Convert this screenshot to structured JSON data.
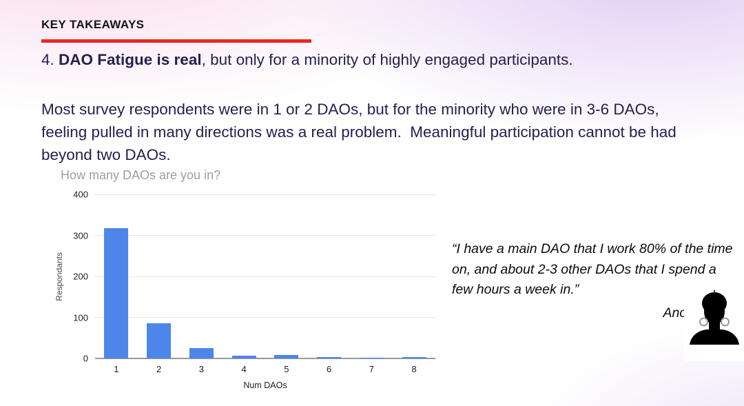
{
  "slide": {
    "kicker": "KEY TAKEAWAYS",
    "heading": {
      "prefix": "4. ",
      "bold": "DAO Fatigue is real",
      "rest": ", but only for a minority of highly engaged participants."
    },
    "body": "Most survey respondents were in 1 or 2 DAOs, but for the minority who were in 3-6 DAOs, feeling pulled in many directions was a real problem.  Meaningful participation cannot be had beyond two DAOs.",
    "quote": {
      "text": "“I have a main DAO that I work 80% of the time on, and about 2-3 other DAOs that I spend a few hours a week in.”",
      "attribution": "Anon"
    },
    "avatar_icon": "anonymous-person-silhouette"
  },
  "colors": {
    "accent_red": "#ee2524",
    "heading_text": "#25204e",
    "bar_blue": "#4d86e8",
    "chart_title_gray": "#9e9e9e"
  },
  "chart_data": {
    "type": "bar",
    "title": "How many DAOs are you in?",
    "xlabel": "Num DAOs",
    "ylabel": "Respondants",
    "categories": [
      "1",
      "2",
      "3",
      "4",
      "5",
      "6",
      "7",
      "8"
    ],
    "values": [
      318,
      85,
      25,
      7,
      9,
      3,
      1,
      3
    ],
    "yticks": [
      0,
      100,
      200,
      300,
      400
    ],
    "ylim": [
      0,
      400
    ],
    "grid": true,
    "legend": "none",
    "bar_color": "#4d86e8"
  }
}
